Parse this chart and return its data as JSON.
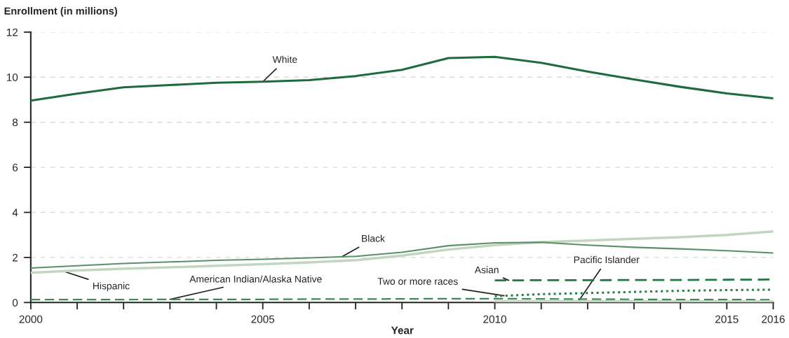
{
  "chart_data": {
    "type": "line",
    "ylabel": "Enrollment (in millions)",
    "xlabel": "Year",
    "x": [
      2000,
      2001,
      2002,
      2003,
      2004,
      2005,
      2006,
      2007,
      2008,
      2009,
      2010,
      2011,
      2012,
      2013,
      2014,
      2015,
      2016
    ],
    "series": [
      {
        "name": "White",
        "color": "#1e6b3c",
        "line_style": "solid",
        "values": [
          8.96,
          9.27,
          9.55,
          9.65,
          9.75,
          9.8,
          9.87,
          10.05,
          10.33,
          10.85,
          10.9,
          10.64,
          10.25,
          9.9,
          9.57,
          9.28,
          9.06
        ]
      },
      {
        "name": "Black",
        "color": "#5a9068",
        "line_style": "solid",
        "values": [
          1.53,
          1.63,
          1.73,
          1.8,
          1.87,
          1.92,
          1.98,
          2.05,
          2.23,
          2.52,
          2.65,
          2.67,
          2.55,
          2.45,
          2.38,
          2.3,
          2.2
        ]
      },
      {
        "name": "Hispanic",
        "color": "#c2d5bf",
        "line_style": "solid",
        "values": [
          1.32,
          1.42,
          1.5,
          1.56,
          1.63,
          1.7,
          1.78,
          1.88,
          2.08,
          2.35,
          2.55,
          2.68,
          2.75,
          2.83,
          2.9,
          3.0,
          3.15
        ]
      },
      {
        "name": "Asian",
        "color": "#1e7a40",
        "line_style": "dashed",
        "values": [
          null,
          null,
          null,
          null,
          null,
          null,
          null,
          null,
          null,
          null,
          0.98,
          0.99,
          0.99,
          1.0,
          1.0,
          1.01,
          1.02
        ]
      },
      {
        "name": "Pacific Islander",
        "color": "#c2d5bf",
        "line_style": "solid",
        "values": [
          null,
          null,
          null,
          null,
          null,
          null,
          null,
          null,
          null,
          null,
          0.05,
          0.05,
          0.05,
          0.05,
          0.05,
          0.05,
          0.05
        ]
      },
      {
        "name": "American Indian/Alaska Native",
        "color": "#3d8a55",
        "line_style": "dashed",
        "values": [
          0.13,
          0.13,
          0.13,
          0.14,
          0.14,
          0.14,
          0.15,
          0.15,
          0.16,
          0.17,
          0.17,
          0.16,
          0.15,
          0.14,
          0.13,
          0.13,
          0.12
        ]
      },
      {
        "name": "Two or more races",
        "color": "#2a8048",
        "line_style": "dotted",
        "values": [
          null,
          null,
          null,
          null,
          null,
          null,
          null,
          null,
          null,
          null,
          0.28,
          0.37,
          0.42,
          0.47,
          0.52,
          0.55,
          0.57
        ]
      }
    ],
    "xlim": [
      2000,
      2016
    ],
    "xticks": [
      2000,
      {
        "value": 2001,
        "label": null
      },
      {
        "value": 2002,
        "label": null
      },
      {
        "value": 2003,
        "label": null
      },
      {
        "value": 2004,
        "label": null
      },
      2005,
      {
        "value": 2006,
        "label": null
      },
      {
        "value": 2007,
        "label": null
      },
      {
        "value": 2008,
        "label": null
      },
      {
        "value": 2009,
        "label": null
      },
      2010,
      {
        "value": 2011,
        "label": null
      },
      {
        "value": 2012,
        "label": null
      },
      {
        "value": 2013,
        "label": null
      },
      {
        "value": 2014,
        "label": null
      },
      2015,
      2016
    ],
    "ylim": [
      0,
      12
    ],
    "yticks": [
      0,
      2,
      4,
      6,
      8,
      10,
      12
    ],
    "grid": "y"
  }
}
